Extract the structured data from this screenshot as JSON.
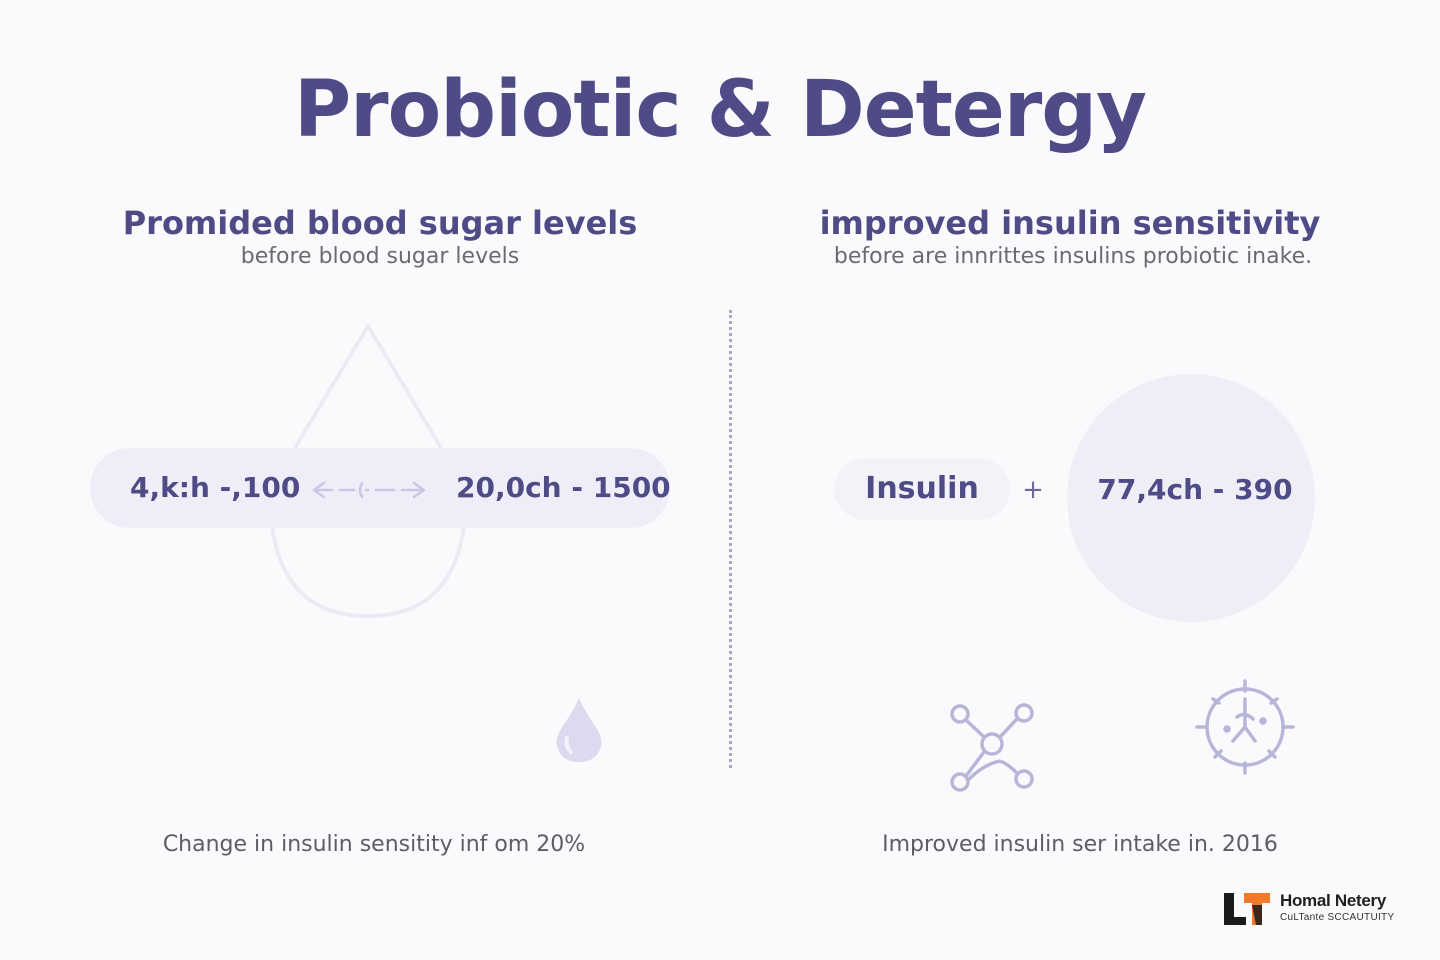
{
  "title": "Probiotic & Detergy",
  "left_panel": {
    "heading": "Promided blood sugar levels",
    "subheading": "before blood sugar levels",
    "value_left": "4,k:h -,100",
    "value_right": "20,0ch - 1500",
    "caption": "Change in insulin sensitity inf om 20%",
    "icons": [
      "blood-drop-outline-icon",
      "double-arrow-icon",
      "blood-drop-icon"
    ]
  },
  "right_panel": {
    "heading": "improved insulin sensitivity",
    "subheading": "before are innrittes insulins probiotic inake.",
    "insulin_label": "Insulin",
    "plus": "+",
    "circle_value": "77,4ch - 390",
    "caption": "Improved insulin ser intake in. 2016",
    "icons": [
      "network-icon",
      "clock-icon"
    ]
  },
  "logo": {
    "name": "Homal Netery",
    "tagline": "CuLTante SCCAUTUITY",
    "colors": {
      "dark": "#1a1a1a",
      "accent": "#f07a2a"
    }
  },
  "colors": {
    "primary": "#4f4b87",
    "text_gray": "#6a6a74",
    "pill_background": "#efeef8",
    "background": "#fafafc"
  }
}
